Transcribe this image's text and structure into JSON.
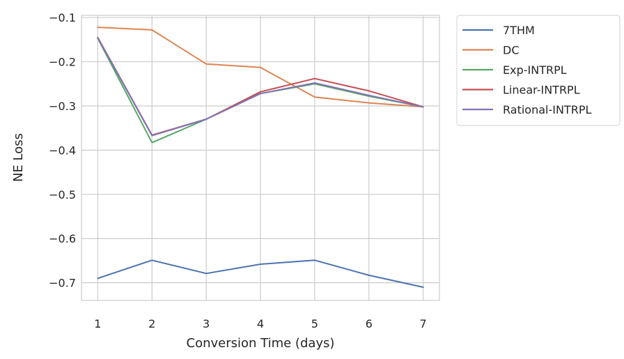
{
  "chart_data": {
    "type": "line",
    "xlabel": "Conversion Time (days)",
    "ylabel": "NE Loss",
    "x": [
      1,
      2,
      3,
      4,
      5,
      6,
      7
    ],
    "xlim": [
      0.7,
      7.3
    ],
    "ylim": [
      -0.74,
      -0.095
    ],
    "xticks": [
      "1",
      "2",
      "3",
      "4",
      "5",
      "6",
      "7"
    ],
    "yticks": [
      {
        "value": -0.1,
        "label": "−0.1"
      },
      {
        "value": -0.2,
        "label": "−0.2"
      },
      {
        "value": -0.3,
        "label": "−0.3"
      },
      {
        "value": -0.4,
        "label": "−0.4"
      },
      {
        "value": -0.5,
        "label": "−0.5"
      },
      {
        "value": -0.6,
        "label": "−0.6"
      },
      {
        "value": -0.7,
        "label": "−0.7"
      }
    ],
    "grid": true,
    "legend_position": "outside-right-top",
    "series": [
      {
        "name": "7THM",
        "color": "#4c72b0",
        "values": [
          -0.69,
          -0.649,
          -0.679,
          -0.658,
          -0.649,
          -0.683,
          -0.71
        ]
      },
      {
        "name": "DC",
        "color": "#dd8452",
        "values": [
          -0.122,
          -0.128,
          -0.205,
          -0.213,
          -0.28,
          -0.293,
          -0.302
        ]
      },
      {
        "name": "Exp-INTRPL",
        "color": "#55a868",
        "values": [
          -0.147,
          -0.383,
          -0.33,
          -0.272,
          -0.25,
          -0.278,
          -0.302
        ]
      },
      {
        "name": "Linear-INTRPL",
        "color": "#c44e52",
        "values": [
          -0.145,
          -0.366,
          -0.33,
          -0.268,
          -0.238,
          -0.266,
          -0.302
        ]
      },
      {
        "name": "Rational-INTRPL",
        "color": "#8172b3",
        "values": [
          -0.146,
          -0.367,
          -0.33,
          -0.272,
          -0.248,
          -0.276,
          -0.302
        ]
      }
    ]
  }
}
